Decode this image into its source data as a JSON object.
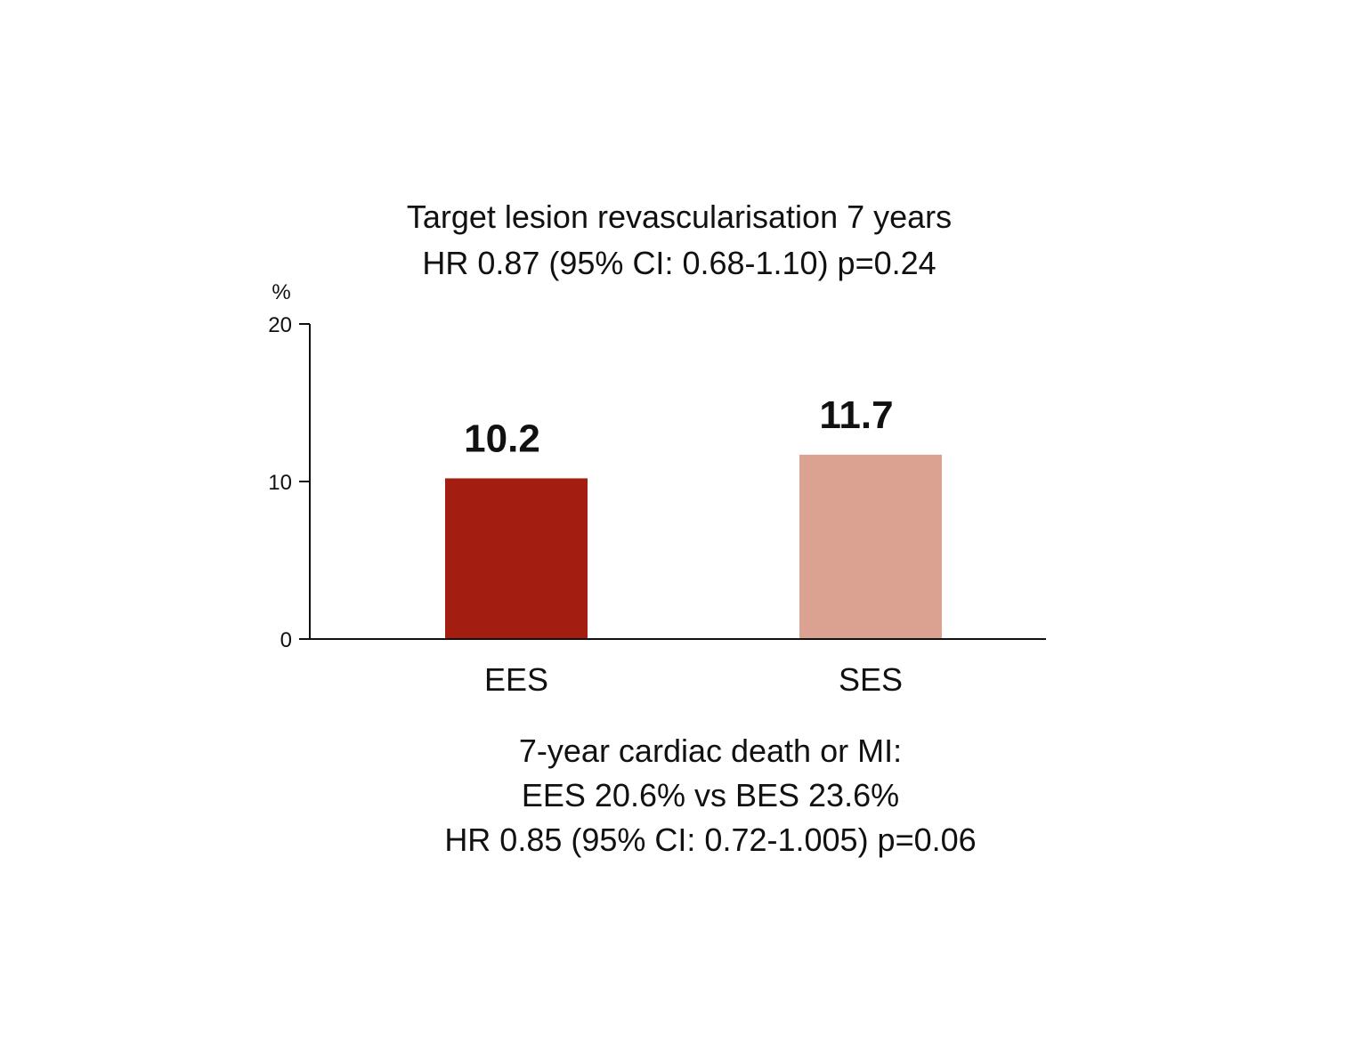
{
  "chart_data": {
    "type": "bar",
    "title": "Target lesion revascularisation 7 years",
    "subtitle": "HR 0.87 (95% CI: 0.68-1.10) p=0.24",
    "ylabel": "%",
    "xlabel": "",
    "ylim": [
      0,
      20
    ],
    "yticks": [
      0,
      10,
      20
    ],
    "categories": [
      "EES",
      "SES"
    ],
    "values": [
      10.2,
      11.7
    ],
    "value_labels": [
      "10.2",
      "11.7"
    ],
    "colors": [
      "#a31d10",
      "#dca291"
    ],
    "grid": false,
    "annotation": [
      "7-year cardiac death or MI:",
      "EES 20.6% vs BES 23.6%",
      "HR 0.85 (95% CI: 0.72-1.005) p=0.06"
    ]
  }
}
